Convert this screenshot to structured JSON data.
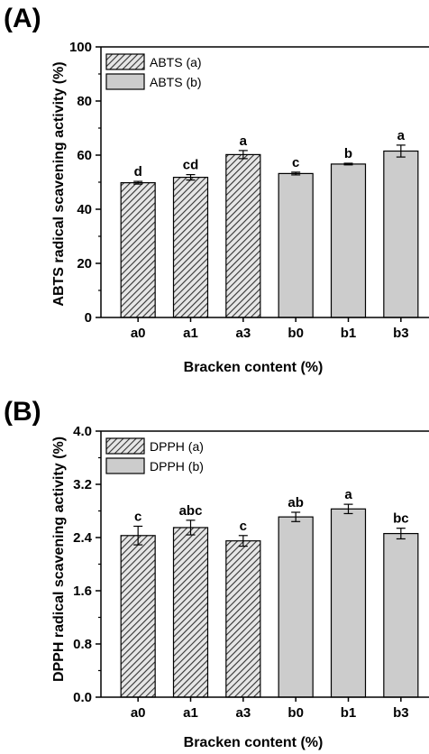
{
  "chart_data": [
    {
      "type": "bar",
      "panel_label": "(A)",
      "categories": [
        "a0",
        "a1",
        "a3",
        "b0",
        "b1",
        "b3"
      ],
      "values": [
        49.8,
        51.8,
        60.2,
        53.2,
        56.7,
        61.5
      ],
      "errors": [
        0.5,
        1.0,
        1.5,
        0.5,
        0.3,
        2.2
      ],
      "significance_labels": [
        "d",
        "cd",
        "a",
        "c",
        "b",
        "a"
      ],
      "groups": [
        "a",
        "a",
        "a",
        "b",
        "b",
        "b"
      ],
      "xlabel": "Bracken content (%)",
      "ylabel": "ABTS radical scavening activity (%)",
      "ylim": [
        0,
        100
      ],
      "yticks": [
        "0",
        "20",
        "40",
        "60",
        "80",
        "100"
      ],
      "legend": [
        {
          "group": "a",
          "label": "ABTS (a)"
        },
        {
          "group": "b",
          "label": "ABTS (b)"
        }
      ],
      "legend_position": "top-left",
      "grid": false
    },
    {
      "type": "bar",
      "panel_label": "(B)",
      "categories": [
        "a0",
        "a1",
        "a3",
        "b0",
        "b1",
        "b3"
      ],
      "values": [
        2.43,
        2.55,
        2.35,
        2.71,
        2.83,
        2.46
      ],
      "errors": [
        0.14,
        0.11,
        0.08,
        0.07,
        0.07,
        0.08
      ],
      "significance_labels": [
        "c",
        "abc",
        "c",
        "ab",
        "a",
        "bc"
      ],
      "groups": [
        "a",
        "a",
        "a",
        "b",
        "b",
        "b"
      ],
      "xlabel": "Bracken content (%)",
      "ylabel": "DPPH radical scavening activity (%)",
      "ylim": [
        0,
        4.0
      ],
      "yticks": [
        "0.0",
        "0.8",
        "1.6",
        "2.4",
        "3.2",
        "4.0"
      ],
      "legend": [
        {
          "group": "a",
          "label": "DPPH (a)"
        },
        {
          "group": "b",
          "label": "DPPH (b)"
        }
      ],
      "legend_position": "top-left",
      "grid": false
    }
  ],
  "colors": {
    "bar_b": "#cccccc",
    "bar_a_hatch_bg": "#e6e6e6",
    "hatch_line": "#333333",
    "axis": "#000000"
  }
}
